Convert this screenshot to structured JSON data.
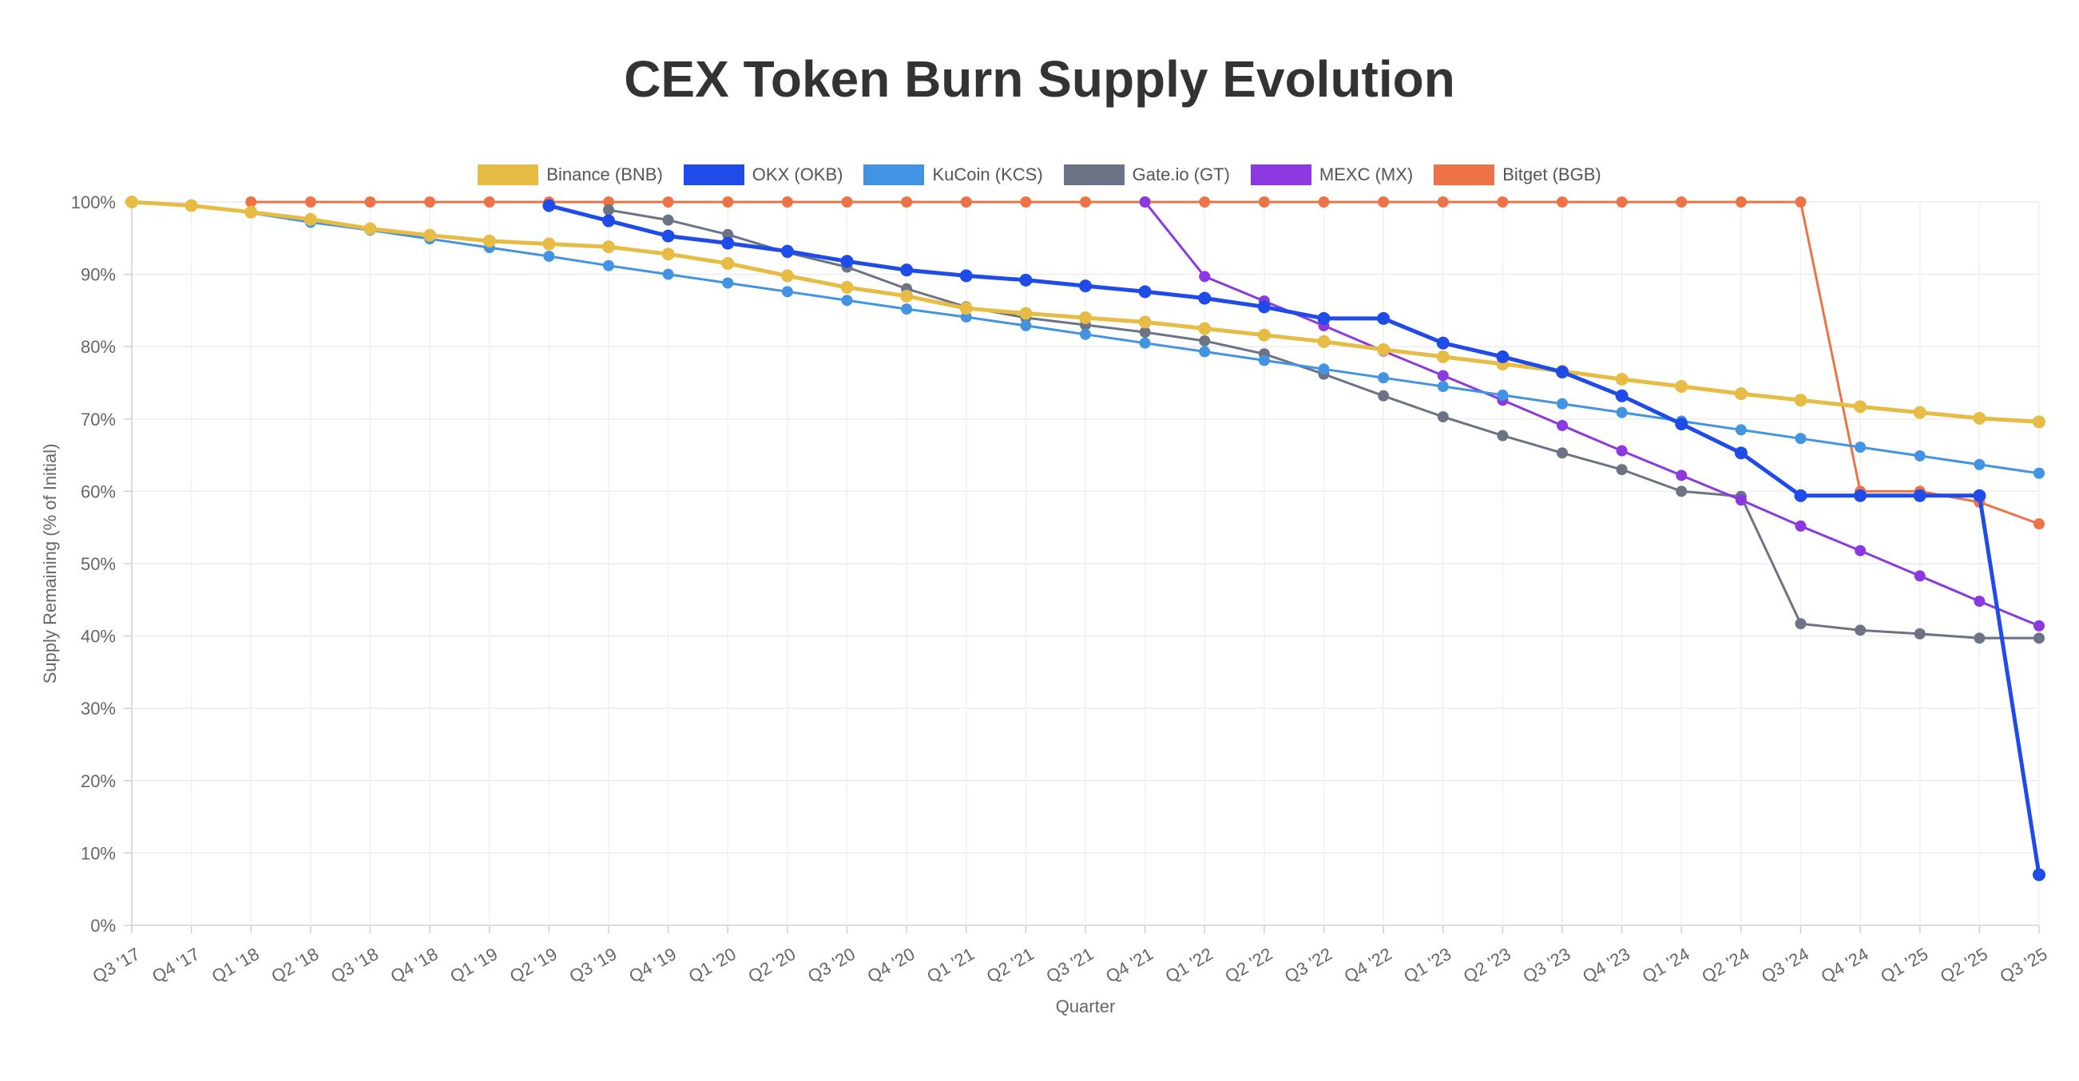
{
  "chart_data": {
    "type": "line",
    "title": "CEX Token Burn Supply Evolution",
    "xlabel": "Quarter",
    "ylabel": "Supply Remaining (% of Initial)",
    "ylim": [
      0,
      100
    ],
    "y_ticks": [
      "0%",
      "10%",
      "20%",
      "30%",
      "40%",
      "50%",
      "60%",
      "70%",
      "80%",
      "90%",
      "100%"
    ],
    "grid": true,
    "legend_position": "top",
    "categories": [
      "Q3 '17",
      "Q4 '17",
      "Q1 '18",
      "Q2 '18",
      "Q3 '18",
      "Q4 '18",
      "Q1 '19",
      "Q2 '19",
      "Q3 '19",
      "Q4 '19",
      "Q1 '20",
      "Q2 '20",
      "Q3 '20",
      "Q4 '20",
      "Q1 '21",
      "Q2 '21",
      "Q3 '21",
      "Q4 '21",
      "Q1 '22",
      "Q2 '22",
      "Q3 '22",
      "Q4 '22",
      "Q1 '23",
      "Q2 '23",
      "Q3 '23",
      "Q4 '23",
      "Q1 '24",
      "Q2 '24",
      "Q3 '24",
      "Q4 '24",
      "Q1 '25",
      "Q2 '25",
      "Q3 '25"
    ],
    "series": [
      {
        "name": "Bitget (BGB)",
        "color": "#ED7347",
        "values": [
          null,
          null,
          100,
          100,
          100,
          100,
          100,
          100,
          100,
          100,
          100,
          100,
          100,
          100,
          100,
          100,
          100,
          100,
          100,
          100,
          100,
          100,
          100,
          100,
          100,
          100,
          100,
          100,
          100,
          60,
          60,
          58.5,
          55.5
        ]
      },
      {
        "name": "Gate.io (GT)",
        "color": "#6B7385",
        "values": [
          null,
          null,
          null,
          null,
          null,
          null,
          null,
          null,
          98.9,
          97.5,
          95.5,
          93,
          91,
          88,
          85.5,
          84,
          83,
          82,
          80.8,
          79,
          76.2,
          73.2,
          70.3,
          67.7,
          65.3,
          63,
          60,
          59.3,
          41.7,
          40.8,
          40.3,
          39.7,
          39.7
        ]
      },
      {
        "name": "MEXC (MX)",
        "color": "#8B38E0",
        "values": [
          null,
          null,
          null,
          null,
          null,
          null,
          null,
          null,
          null,
          null,
          null,
          null,
          null,
          null,
          null,
          null,
          null,
          100,
          89.7,
          86.3,
          82.9,
          79.4,
          76,
          72.6,
          69.1,
          65.6,
          62.2,
          58.8,
          55.2,
          51.8,
          48.3,
          44.8,
          41.4
        ]
      },
      {
        "name": "KuCoin (KCS)",
        "color": "#4294E3",
        "values": [
          100,
          99.5,
          98.5,
          97.2,
          96.1,
          94.9,
          93.7,
          92.5,
          91.2,
          90,
          88.8,
          87.6,
          86.4,
          85.2,
          84.1,
          82.9,
          81.7,
          80.5,
          79.3,
          78.1,
          76.9,
          75.7,
          74.5,
          73.3,
          72.1,
          70.9,
          69.7,
          68.5,
          67.3,
          66.1,
          64.9,
          63.7,
          62.5
        ]
      },
      {
        "name": "Binance (BNB)",
        "color": "#E6BC45",
        "values": [
          100,
          99.5,
          98.6,
          97.6,
          96.3,
          95.4,
          94.6,
          94.2,
          93.8,
          92.8,
          91.5,
          89.8,
          88.2,
          87,
          85.3,
          84.6,
          84,
          83.4,
          82.5,
          81.6,
          80.7,
          79.6,
          78.6,
          77.6,
          76.6,
          75.5,
          74.5,
          73.5,
          72.6,
          71.7,
          70.9,
          70.1,
          69.6
        ]
      },
      {
        "name": "OKX (OKB)",
        "color": "#1F4CE8",
        "values": [
          null,
          null,
          null,
          null,
          null,
          null,
          null,
          99.5,
          97.4,
          95.3,
          94.3,
          93.2,
          91.8,
          90.6,
          89.8,
          89.2,
          88.4,
          87.6,
          86.7,
          85.5,
          83.9,
          83.9,
          80.5,
          78.6,
          76.5,
          73.2,
          69.3,
          65.3,
          59.4,
          59.4,
          59.4,
          59.4,
          7
        ]
      }
    ],
    "legend_order": [
      "Binance (BNB)",
      "OKX (OKB)",
      "KuCoin (KCS)",
      "Gate.io (GT)",
      "MEXC (MX)",
      "Bitget (BGB)"
    ]
  }
}
